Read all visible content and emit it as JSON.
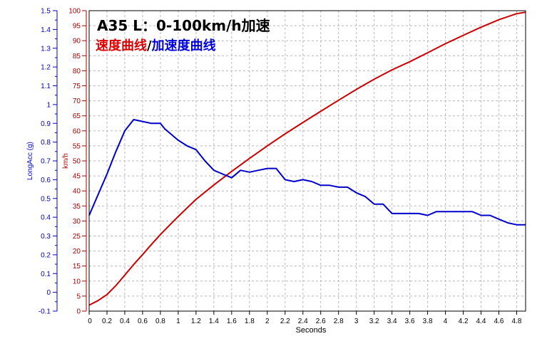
{
  "chart_data": {
    "type": "line",
    "title": "A35 L：0-100km/h加速",
    "subtitle": {
      "speed_label": "速度曲线",
      "separator": "/",
      "acc_label": "加速度曲线"
    },
    "xlabel": "Seconds",
    "xlim": [
      0,
      4.9
    ],
    "x_ticks": [
      "0",
      "0.2",
      "0.4",
      "0.6",
      "0.8",
      "1",
      "1.2",
      "1.4",
      "1.6",
      "1.8",
      "2",
      "2.2",
      "2.4",
      "2.6",
      "2.8",
      "3",
      "3.2",
      "3.4",
      "3.6",
      "3.8",
      "4",
      "4.2",
      "4.4",
      "4.6",
      "4.8"
    ],
    "y_left": {
      "label": "LongAcc (g)",
      "ylim": [
        -0.1,
        1.5
      ],
      "ticks": [
        "-0.1",
        "0",
        "0.1",
        "0.2",
        "0.3",
        "0.4",
        "0.5",
        "0.6",
        "0.7",
        "0.8",
        "0.9",
        "1",
        "1.1",
        "1.2",
        "1.3",
        "1.4",
        "1.5"
      ],
      "color": "#0000cc"
    },
    "y_right": {
      "label": "km/h",
      "ylim": [
        0,
        100
      ],
      "ticks": [
        "0",
        "5",
        "10",
        "15",
        "20",
        "25",
        "30",
        "35",
        "40",
        "45",
        "50",
        "55",
        "60",
        "65",
        "70",
        "75",
        "80",
        "85",
        "90",
        "95",
        "100"
      ],
      "color": "#aa0000"
    },
    "series": [
      {
        "name": "速度曲线",
        "axis": "right",
        "color": "#cc0000",
        "x": [
          0,
          0.1,
          0.2,
          0.3,
          0.4,
          0.5,
          0.6,
          0.7,
          0.8,
          0.9,
          1.0,
          1.2,
          1.4,
          1.6,
          1.8,
          2.0,
          2.2,
          2.4,
          2.6,
          2.8,
          3.0,
          3.2,
          3.4,
          3.6,
          3.8,
          4.0,
          4.2,
          4.4,
          4.6,
          4.8,
          4.9
        ],
        "values": [
          2,
          3.5,
          5.5,
          8.5,
          12,
          15.5,
          18.8,
          22.2,
          25.5,
          28.5,
          31.5,
          37.2,
          42,
          46.5,
          50.8,
          55,
          59,
          62.8,
          66.5,
          70.2,
          73.8,
          77.2,
          80.3,
          83,
          86,
          89,
          91.8,
          94.5,
          97,
          99,
          99.5
        ]
      },
      {
        "name": "加速度曲线",
        "axis": "left",
        "color": "#0000cc",
        "x": [
          0,
          0.1,
          0.2,
          0.3,
          0.4,
          0.45,
          0.5,
          0.6,
          0.7,
          0.8,
          0.85,
          0.9,
          1.0,
          1.1,
          1.2,
          1.3,
          1.4,
          1.5,
          1.6,
          1.7,
          1.8,
          1.9,
          2.0,
          2.1,
          2.2,
          2.3,
          2.4,
          2.5,
          2.6,
          2.7,
          2.8,
          2.9,
          3.0,
          3.1,
          3.2,
          3.3,
          3.4,
          3.5,
          3.6,
          3.7,
          3.8,
          3.9,
          4.0,
          4.1,
          4.2,
          4.3,
          4.4,
          4.5,
          4.6,
          4.7,
          4.8,
          4.9
        ],
        "values": [
          0.41,
          0.52,
          0.63,
          0.75,
          0.86,
          0.89,
          0.92,
          0.91,
          0.9,
          0.9,
          0.87,
          0.85,
          0.81,
          0.78,
          0.76,
          0.7,
          0.65,
          0.63,
          0.61,
          0.65,
          0.64,
          0.65,
          0.66,
          0.66,
          0.6,
          0.59,
          0.6,
          0.59,
          0.57,
          0.57,
          0.56,
          0.56,
          0.53,
          0.51,
          0.47,
          0.47,
          0.42,
          0.42,
          0.42,
          0.42,
          0.41,
          0.43,
          0.43,
          0.43,
          0.43,
          0.43,
          0.41,
          0.41,
          0.39,
          0.37,
          0.36,
          0.36
        ]
      }
    ]
  }
}
